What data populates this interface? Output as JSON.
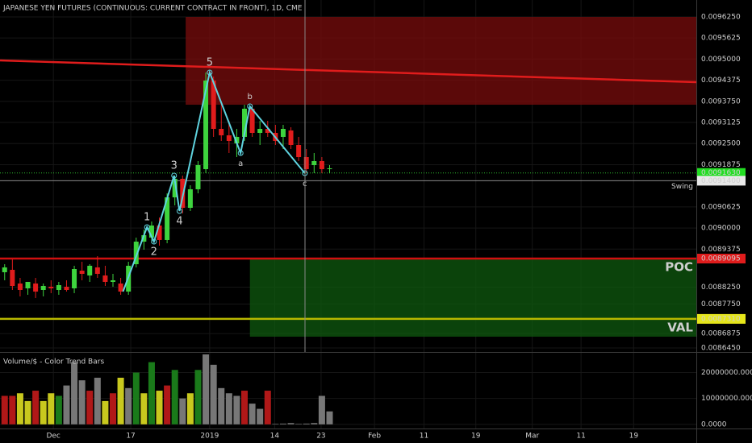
{
  "chart_data": [
    {
      "type": "candlestick",
      "title": "JAPANESE YEN FUTURES (CONTINUOUS: CURRENT CONTRACT IN FRONT), 1D, CME",
      "x": [
        0,
        1,
        2,
        3,
        4,
        5,
        6,
        7,
        8,
        9,
        10,
        11,
        12,
        13,
        14,
        15,
        16,
        17,
        18,
        19,
        20,
        21,
        22,
        23,
        24,
        25,
        26,
        27,
        28,
        29,
        30,
        31,
        32,
        33,
        34,
        35,
        36,
        37,
        38,
        39,
        40,
        41,
        42
      ],
      "open": [
        0.0088691,
        0.0088762,
        0.0088357,
        0.0088214,
        0.0088357,
        0.0088166,
        0.0088262,
        0.0088166,
        0.0088262,
        0.0088214,
        0.0088738,
        0.0088595,
        0.0088834,
        0.0088595,
        0.0088405,
        0.0088357,
        0.0088118,
        0.0088929,
        0.0089597,
        0.0089716,
        0.0090074,
        0.0089645,
        0.0090908,
        0.0091457,
        0.0090598,
        0.0091147,
        0.0091743,
        0.0094366,
        0.0092935,
        0.0092744,
        0.0092506,
        0.0092697,
        0.0093531,
        0.0092816,
        0.0092935,
        0.0092816,
        0.0092697,
        0.0092887,
        0.0092458,
        0.00921,
        0.0091862,
        0.0091981,
        0.0091743
      ],
      "high": [
        0.0088929,
        0.0089072,
        0.0088524,
        0.0088405,
        0.0088524,
        0.0088357,
        0.0088452,
        0.0088405,
        0.0088452,
        0.0088882,
        0.0089001,
        0.0088929,
        0.0089168,
        0.0088882,
        0.0088643,
        0.0088524,
        0.0089001,
        0.0089716,
        0.0089954,
        0.0090193,
        0.0090312,
        0.0091027,
        0.0091552,
        0.0091552,
        0.0091266,
        0.0091981,
        0.0094604,
        0.0094485,
        0.009365,
        0.0093173,
        0.0092935,
        0.009365,
        0.009365,
        0.0093173,
        0.0093173,
        0.0093054,
        0.0093054,
        0.0092983,
        0.0092697,
        0.0092339,
        0.009222,
        0.00921,
        0.0091862
      ],
      "low": [
        0.0088452,
        0.0088166,
        0.0087975,
        0.0088023,
        0.0087928,
        0.0087975,
        0.0088071,
        0.0088023,
        0.0088118,
        0.0088071,
        0.0088452,
        0.0088405,
        0.0088524,
        0.0088285,
        0.0088262,
        0.0088023,
        0.0088023,
        0.0088834,
        0.0089358,
        0.0089549,
        0.0089478,
        0.0089549,
        0.009067,
        0.0090431,
        0.0090503,
        0.0091027,
        0.0091624,
        0.0092697,
        0.0092577,
        0.009222,
        0.00921,
        0.0092577,
        0.0092697,
        0.0092458,
        0.0092697,
        0.0092458,
        0.0092339,
        0.0092339,
        0.0091981,
        0.0091624,
        0.0091624,
        0.0091624,
        0.0091624
      ],
      "close": [
        0.0088834,
        0.0088285,
        0.0088166,
        0.0088405,
        0.0088118,
        0.0088285,
        0.0088214,
        0.0088309,
        0.0088166,
        0.0088786,
        0.0088643,
        0.0088882,
        0.0088643,
        0.0088405,
        0.0088452,
        0.0088118,
        0.0088882,
        0.0089597,
        0.0089788,
        0.0090074,
        0.0089645,
        0.0090908,
        0.0091457,
        0.0090598,
        0.0091147,
        0.0091862,
        0.0094366,
        0.0092935,
        0.0092744,
        0.0092577,
        0.0092697,
        0.0093531,
        0.0092816,
        0.0092935,
        0.0092816,
        0.0092577,
        0.0092935,
        0.0092458,
        0.00921,
        0.0091743,
        0.0091981,
        0.0091743,
        0.0091767
      ],
      "up_color": "#3ed43e",
      "down_color": "#e01c1c",
      "xlim": [
        -0.6,
        89.4
      ],
      "xticks": [
        {
          "value": 6.3,
          "label": "Dec"
        },
        {
          "value": 16.3,
          "label": "17"
        },
        {
          "value": 26.5,
          "label": "2019"
        },
        {
          "value": 34.9,
          "label": "14"
        },
        {
          "value": 40.9,
          "label": "23"
        },
        {
          "value": 47.8,
          "label": "Feb"
        },
        {
          "value": 54.2,
          "label": "11"
        },
        {
          "value": 60.9,
          "label": "19"
        },
        {
          "value": 68.2,
          "label": "Mar"
        },
        {
          "value": 74.5,
          "label": "11"
        },
        {
          "value": 81.3,
          "label": "19"
        }
      ],
      "ylim": [
        0.008633,
        0.009675
      ],
      "yticks": [
        {
          "value": 0.009625,
          "label": "0.0096250"
        },
        {
          "value": 0.0095625,
          "label": "0.0095625"
        },
        {
          "value": 0.0095,
          "label": "0.0095000"
        },
        {
          "value": 0.0094375,
          "label": "0.0094375"
        },
        {
          "value": 0.009375,
          "label": "0.0093750"
        },
        {
          "value": 0.0093125,
          "label": "0.0093125"
        },
        {
          "value": 0.00925,
          "label": "0.0092500"
        },
        {
          "value": 0.0091875,
          "label": "0.0091875"
        },
        {
          "value": 0.0090625,
          "label": "0.0090625"
        },
        {
          "value": 0.009,
          "label": "0.0090000"
        },
        {
          "value": 0.0089375,
          "label": "0.0089375"
        },
        {
          "value": 0.008825,
          "label": "0.0088250"
        },
        {
          "value": 0.008775,
          "label": "0.0087750"
        },
        {
          "value": 0.0086875,
          "label": "0.0086875"
        },
        {
          "value": 0.008645,
          "label": "0.0086450"
        }
      ],
      "grid": true,
      "zones": [
        {
          "x": [
            23.4,
            89.4
          ],
          "y": [
            0.009365,
            0.0096249
          ],
          "color": "#7a0c0c"
        },
        {
          "x": [
            31.7,
            89.4
          ],
          "y": [
            0.0086783,
            0.0089095
          ],
          "color": "#0f5a0f"
        }
      ],
      "trendline": {
        "x": [
          -0.6,
          89.4
        ],
        "y": [
          0.0094962,
          0.0094318
        ],
        "color": "#e01c1c"
      },
      "levels": [
        {
          "name": "POC",
          "value": 0.0089095,
          "color": "#d01010",
          "label_color": "#9aff3a"
        },
        {
          "name": "VAL",
          "value": 0.008731,
          "color": "#b8b800",
          "label_color": "#9aff3a"
        },
        {
          "name": "Swing",
          "value": 0.00914,
          "color": "#8a8a8a",
          "label_color": "#d4c64a"
        },
        {
          "value": 0.009163,
          "color": "#2fbf2f"
        }
      ],
      "waves": {
        "x": [
          15.3,
          18.4,
          19.3,
          21.9,
          22.6,
          26.5,
          30.5,
          31.7,
          38.8
        ],
        "y": [
          0.0088118,
          0.0090026,
          0.0089597,
          0.0091552,
          0.0090503,
          0.0094604,
          0.009222,
          0.0093603,
          0.0091624
        ],
        "labels": [
          null,
          "1",
          "2",
          "3",
          "4",
          "5",
          "a",
          "b",
          "c"
        ],
        "color": "#5fd3df"
      },
      "price_labels": [
        {
          "value": 0.009163,
          "label": "0.0091630",
          "color": "#22dd22",
          "text_color": "#000000"
        },
        {
          "value": 0.00914,
          "label": "0.0091400",
          "color": "#e8e8e8",
          "text_color": "#000000"
        },
        {
          "value": 0.0089095,
          "label": "0.0089095",
          "color": "#e01c1c",
          "text_color": "#ffffff"
        },
        {
          "value": 0.008731,
          "label": "0.0087310",
          "color": "#e6e61a",
          "text_color": "#000000"
        }
      ]
    },
    {
      "type": "bar",
      "title": "Volume/$ - Color Trend Bars",
      "values": [
        11000000,
        11000000,
        12000000,
        9000000,
        13000000,
        9000000,
        12000000,
        11000000,
        15000000,
        24000000,
        17000000,
        13000000,
        18000000,
        9000000,
        12000000,
        18000000,
        14000000,
        20000000,
        12000000,
        24000000,
        13000000,
        15000000,
        21000000,
        10000000,
        12000000,
        21000000,
        27000000,
        23000000,
        14000000,
        12000000,
        11000000,
        13000000,
        8000000,
        6000000,
        13000000,
        200000,
        300000,
        500000,
        200000,
        300000,
        500000,
        11000000,
        5000000
      ],
      "colors": [
        "#b01818",
        "#b01818",
        "#c8c81e",
        "#c8c81e",
        "#b01818",
        "#c8c81e",
        "#c8c81e",
        "#1a7a1a",
        "#777777",
        "#777777",
        "#777777",
        "#b01818",
        "#777777",
        "#c8c81e",
        "#b01818",
        "#c8c81e",
        "#777777",
        "#1a7a1a",
        "#c8c81e",
        "#1a7a1a",
        "#c8c81e",
        "#b01818",
        "#1a7a1a",
        "#777777",
        "#c8c81e",
        "#1a7a1a",
        "#777777",
        "#777777",
        "#777777",
        "#777777",
        "#777777",
        "#b01818",
        "#777777",
        "#777777",
        "#b01818",
        "#777777",
        "#777777",
        "#777777",
        "#777777",
        "#777777",
        "#777777",
        "#777777",
        "#777777"
      ],
      "ylim": [
        -1600000,
        27000000
      ],
      "yticks": [
        {
          "value": 20000000,
          "label": "20000000.0000"
        },
        {
          "value": 10000000,
          "label": "10000000.0000"
        },
        {
          "value": 0,
          "label": "0.0000"
        }
      ]
    }
  ]
}
